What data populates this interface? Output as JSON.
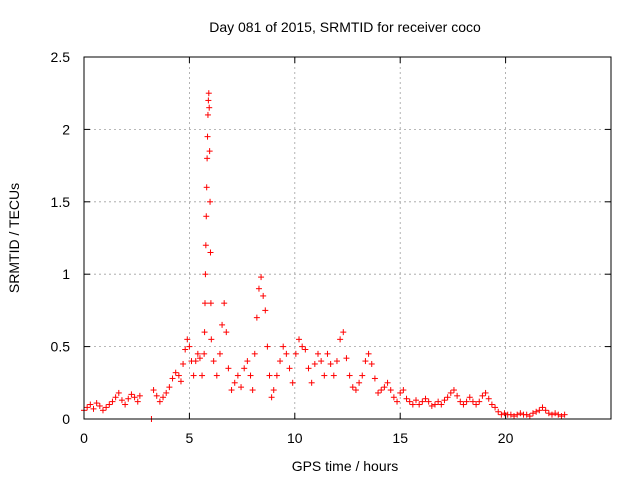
{
  "chart_data": {
    "type": "scatter",
    "title": "Day 081 of 2015, SRMTID for receiver coco",
    "xlabel": "GPS time / hours",
    "ylabel": "SRMTID / TECUs",
    "xlim": [
      0,
      25
    ],
    "ylim": [
      0,
      2.5
    ],
    "x_ticks": [
      0,
      5,
      10,
      15,
      20
    ],
    "y_ticks": [
      0,
      0.5,
      1,
      1.5,
      2,
      2.5
    ],
    "x_tick_labels": [
      "0",
      "5",
      "10",
      "15",
      "20"
    ],
    "y_tick_labels": [
      "0",
      "0.5",
      "1",
      "1.5",
      "2",
      "2.5"
    ],
    "grid": true,
    "marker": "plus",
    "series": [
      {
        "name": "SRMTID",
        "color": "#ff0000",
        "points": [
          [
            0.0,
            0.06
          ],
          [
            0.15,
            0.08
          ],
          [
            0.3,
            0.1
          ],
          [
            0.45,
            0.07
          ],
          [
            0.6,
            0.11
          ],
          [
            0.75,
            0.09
          ],
          [
            0.9,
            0.06
          ],
          [
            1.05,
            0.08
          ],
          [
            1.2,
            0.1
          ],
          [
            1.35,
            0.12
          ],
          [
            1.5,
            0.15
          ],
          [
            1.65,
            0.18
          ],
          [
            1.8,
            0.13
          ],
          [
            1.95,
            0.1
          ],
          [
            2.1,
            0.14
          ],
          [
            2.25,
            0.17
          ],
          [
            2.4,
            0.15
          ],
          [
            2.55,
            0.12
          ],
          [
            2.65,
            0.16
          ],
          [
            3.2,
            0.0
          ],
          [
            3.3,
            0.2
          ],
          [
            3.45,
            0.16
          ],
          [
            3.6,
            0.12
          ],
          [
            3.75,
            0.15
          ],
          [
            3.9,
            0.18
          ],
          [
            4.05,
            0.22
          ],
          [
            4.2,
            0.28
          ],
          [
            4.35,
            0.32
          ],
          [
            4.5,
            0.3
          ],
          [
            4.6,
            0.26
          ],
          [
            4.7,
            0.38
          ],
          [
            4.8,
            0.48
          ],
          [
            4.9,
            0.55
          ],
          [
            5.0,
            0.5
          ],
          [
            5.1,
            0.4
          ],
          [
            5.2,
            0.3
          ],
          [
            5.3,
            0.4
          ],
          [
            5.4,
            0.45
          ],
          [
            5.5,
            0.42
          ],
          [
            5.6,
            0.3
          ],
          [
            5.7,
            0.45
          ],
          [
            5.72,
            0.6
          ],
          [
            5.74,
            0.8
          ],
          [
            5.76,
            1.0
          ],
          [
            5.78,
            1.2
          ],
          [
            5.8,
            1.4
          ],
          [
            5.82,
            1.6
          ],
          [
            5.84,
            1.8
          ],
          [
            5.86,
            1.95
          ],
          [
            5.88,
            2.1
          ],
          [
            5.9,
            2.2
          ],
          [
            5.92,
            2.25
          ],
          [
            5.94,
            2.15
          ],
          [
            5.96,
            1.85
          ],
          [
            5.98,
            1.5
          ],
          [
            6.0,
            1.15
          ],
          [
            6.02,
            0.8
          ],
          [
            6.04,
            0.55
          ],
          [
            6.15,
            0.4
          ],
          [
            6.3,
            0.3
          ],
          [
            6.45,
            0.45
          ],
          [
            6.55,
            0.65
          ],
          [
            6.65,
            0.8
          ],
          [
            6.75,
            0.6
          ],
          [
            6.85,
            0.35
          ],
          [
            7.0,
            0.2
          ],
          [
            7.15,
            0.25
          ],
          [
            7.3,
            0.3
          ],
          [
            7.45,
            0.22
          ],
          [
            7.6,
            0.35
          ],
          [
            7.75,
            0.4
          ],
          [
            7.9,
            0.3
          ],
          [
            8.0,
            0.2
          ],
          [
            8.1,
            0.45
          ],
          [
            8.2,
            0.7
          ],
          [
            8.3,
            0.9
          ],
          [
            8.4,
            0.98
          ],
          [
            8.5,
            0.85
          ],
          [
            8.6,
            0.75
          ],
          [
            8.7,
            0.5
          ],
          [
            8.8,
            0.3
          ],
          [
            8.9,
            0.15
          ],
          [
            9.0,
            0.2
          ],
          [
            9.15,
            0.3
          ],
          [
            9.3,
            0.4
          ],
          [
            9.45,
            0.5
          ],
          [
            9.6,
            0.45
          ],
          [
            9.75,
            0.35
          ],
          [
            9.9,
            0.25
          ],
          [
            10.05,
            0.45
          ],
          [
            10.2,
            0.55
          ],
          [
            10.35,
            0.5
          ],
          [
            10.5,
            0.48
          ],
          [
            10.65,
            0.35
          ],
          [
            10.8,
            0.25
          ],
          [
            10.95,
            0.38
          ],
          [
            11.1,
            0.45
          ],
          [
            11.25,
            0.4
          ],
          [
            11.4,
            0.3
          ],
          [
            11.55,
            0.45
          ],
          [
            11.7,
            0.38
          ],
          [
            11.85,
            0.3
          ],
          [
            12.0,
            0.4
          ],
          [
            12.15,
            0.55
          ],
          [
            12.3,
            0.6
          ],
          [
            12.45,
            0.42
          ],
          [
            12.6,
            0.3
          ],
          [
            12.75,
            0.22
          ],
          [
            12.9,
            0.2
          ],
          [
            13.05,
            0.25
          ],
          [
            13.2,
            0.3
          ],
          [
            13.35,
            0.4
          ],
          [
            13.5,
            0.45
          ],
          [
            13.65,
            0.38
          ],
          [
            13.8,
            0.28
          ],
          [
            13.95,
            0.18
          ],
          [
            14.1,
            0.2
          ],
          [
            14.25,
            0.22
          ],
          [
            14.4,
            0.25
          ],
          [
            14.55,
            0.2
          ],
          [
            14.7,
            0.15
          ],
          [
            14.85,
            0.12
          ],
          [
            15.0,
            0.18
          ],
          [
            15.15,
            0.2
          ],
          [
            15.3,
            0.14
          ],
          [
            15.45,
            0.12
          ],
          [
            15.6,
            0.1
          ],
          [
            15.75,
            0.13
          ],
          [
            15.9,
            0.1
          ],
          [
            16.05,
            0.12
          ],
          [
            16.2,
            0.14
          ],
          [
            16.35,
            0.12
          ],
          [
            16.5,
            0.09
          ],
          [
            16.65,
            0.1
          ],
          [
            16.8,
            0.12
          ],
          [
            16.95,
            0.1
          ],
          [
            17.1,
            0.13
          ],
          [
            17.25,
            0.15
          ],
          [
            17.4,
            0.18
          ],
          [
            17.55,
            0.2
          ],
          [
            17.7,
            0.16
          ],
          [
            17.85,
            0.12
          ],
          [
            18.0,
            0.1
          ],
          [
            18.15,
            0.12
          ],
          [
            18.3,
            0.15
          ],
          [
            18.45,
            0.12
          ],
          [
            18.6,
            0.1
          ],
          [
            18.75,
            0.12
          ],
          [
            18.9,
            0.16
          ],
          [
            19.05,
            0.18
          ],
          [
            19.2,
            0.14
          ],
          [
            19.35,
            0.1
          ],
          [
            19.5,
            0.08
          ],
          [
            19.65,
            0.05
          ],
          [
            19.8,
            0.03
          ],
          [
            19.95,
            0.04
          ],
          [
            20.1,
            0.03
          ],
          [
            20.25,
            0.03
          ],
          [
            20.4,
            0.02
          ],
          [
            20.55,
            0.03
          ],
          [
            20.7,
            0.04
          ],
          [
            20.85,
            0.03
          ],
          [
            21.0,
            0.03
          ],
          [
            21.15,
            0.02
          ],
          [
            21.3,
            0.04
          ],
          [
            21.45,
            0.05
          ],
          [
            21.6,
            0.06
          ],
          [
            21.75,
            0.08
          ],
          [
            21.9,
            0.06
          ],
          [
            22.05,
            0.04
          ],
          [
            22.2,
            0.03
          ],
          [
            22.35,
            0.04
          ],
          [
            22.5,
            0.03
          ],
          [
            22.65,
            0.02
          ],
          [
            22.8,
            0.03
          ]
        ]
      }
    ]
  }
}
